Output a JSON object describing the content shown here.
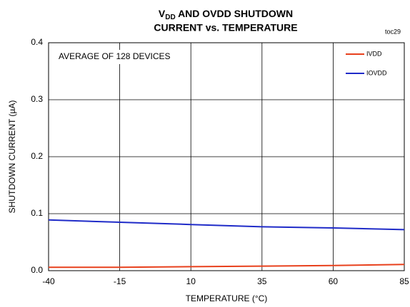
{
  "chart_data": {
    "type": "line",
    "title": [
      "V",
      "DD",
      " AND OVDD SHUTDOWN",
      "CURRENT vs. TEMPERATURE"
    ],
    "figure_id": "toc29",
    "annotation": "AVERAGE OF 128 DEVICES",
    "x_label": "TEMPERATURE (°C)",
    "y_label": "SHUTDOWN CURRENT (µA)",
    "x": [
      -40,
      -15,
      10,
      35,
      60,
      85
    ],
    "series": [
      {
        "name": "IVDD",
        "color": "#e8401c",
        "values": [
          0.006,
          0.006,
          0.007,
          0.008,
          0.009,
          0.011
        ]
      },
      {
        "name": "IOVDD",
        "color": "#1f2bc8",
        "values": [
          0.089,
          0.085,
          0.081,
          0.077,
          0.075,
          0.072
        ]
      }
    ],
    "xlim": [
      -40,
      85
    ],
    "xticks": [
      -40,
      -15,
      10,
      35,
      60,
      85
    ],
    "ylim": [
      0,
      0.4
    ],
    "yticks": [
      {
        "value": 0,
        "label": "0.0"
      },
      0.1,
      0.2,
      0.3,
      0.4
    ],
    "grid": true,
    "legend": "upper right"
  }
}
